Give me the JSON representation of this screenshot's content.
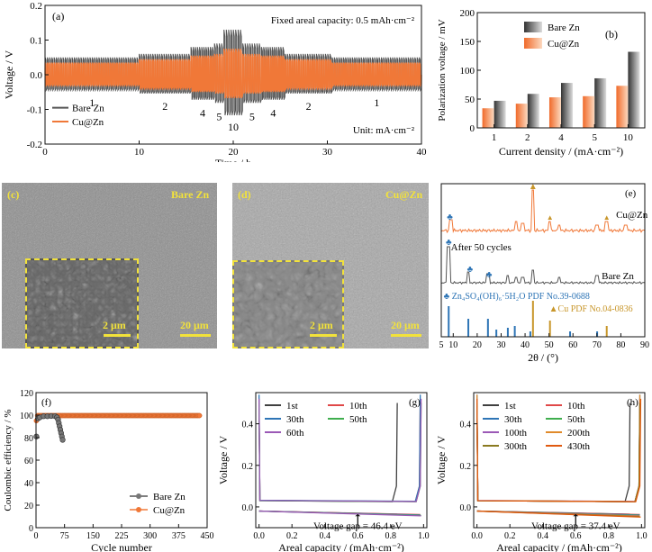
{
  "panels": {
    "a": {
      "label": "(a)",
      "annotation": "Fixed areal capacity: 0.5 mAh·cm⁻²",
      "unit_note": "Unit: mA·cm⁻²",
      "rate_labels": [
        "1",
        "2",
        "4",
        "5",
        "10",
        "5",
        "4",
        "2",
        "1"
      ],
      "legend": [
        "Bare Zn",
        "Cu@Zn"
      ]
    },
    "b": {
      "label": "(b)",
      "legend": [
        "Bare Zn",
        "Cu@Zn"
      ]
    },
    "c": {
      "label": "(c)",
      "title": "Bare Zn",
      "inset_scale": "2 μm",
      "scale": "20 μm"
    },
    "d": {
      "label": "(d)",
      "title": "Cu@Zn",
      "inset_scale": "2 μm",
      "scale": "20 μm"
    },
    "e": {
      "label": "(e)",
      "labels": [
        "Cu@Zn",
        "After 50 cycles",
        "Bare Zn",
        "Zn₄SO₄(OH)₆·5H₂O PDF No.39-0688",
        "Cu PDF No.04-0836"
      ]
    },
    "f": {
      "label": "(f)",
      "legend": [
        "Bare Zn",
        "Cu@Zn"
      ]
    },
    "g": {
      "label": "(g)",
      "gap_label": "Voltage gap = 46.4 eV"
    },
    "h": {
      "label": "(h)",
      "gap_label": "Voltage gap = 37.4 eV"
    }
  },
  "colors": {
    "bare": "#555555",
    "cu": "#f07838",
    "yellow": "#f2e23a",
    "blue": "#2e75b6",
    "gold": "#c8962a"
  },
  "chart_data": [
    {
      "id": "a",
      "type": "line",
      "title": "",
      "xlabel": "Time / h",
      "ylabel": "Voltage / V",
      "xlim": [
        0,
        40
      ],
      "ylim": [
        -0.2,
        0.2
      ],
      "xticks": [
        "0",
        "10",
        "20",
        "30",
        "40"
      ],
      "yticks": [
        "-0.2",
        "-0.1",
        "0.0",
        "0.1",
        "0.2"
      ],
      "segments": [
        {
          "rate": "1",
          "t": [
            0,
            10
          ],
          "bare_amp": 0.05,
          "cu_amp": 0.035
        },
        {
          "rate": "2",
          "t": [
            10,
            15.5
          ],
          "bare_amp": 0.06,
          "cu_amp": 0.045
        },
        {
          "rate": "4",
          "t": [
            15.5,
            18
          ],
          "bare_amp": 0.08,
          "cu_amp": 0.055
        },
        {
          "rate": "5",
          "t": [
            18,
            19
          ],
          "bare_amp": 0.09,
          "cu_amp": 0.06
        },
        {
          "rate": "10",
          "t": [
            19,
            21
          ],
          "bare_amp": 0.13,
          "cu_amp": 0.075
        },
        {
          "rate": "5",
          "t": [
            21,
            23
          ],
          "bare_amp": 0.09,
          "cu_amp": 0.06
        },
        {
          "rate": "4",
          "t": [
            23,
            25.5
          ],
          "bare_amp": 0.08,
          "cu_amp": 0.055
        },
        {
          "rate": "2",
          "t": [
            25.5,
            30.5
          ],
          "bare_amp": 0.06,
          "cu_amp": 0.045
        },
        {
          "rate": "1",
          "t": [
            30.5,
            40
          ],
          "bare_amp": 0.05,
          "cu_amp": 0.035
        }
      ]
    },
    {
      "id": "b",
      "type": "bar",
      "title": "",
      "categories": [
        "1",
        "2",
        "4",
        "5",
        "10"
      ],
      "series": [
        {
          "name": "Bare Zn",
          "values": [
            47,
            59,
            78,
            86,
            132
          ]
        },
        {
          "name": "Cu@Zn",
          "values": [
            34,
            42,
            53,
            55,
            73
          ]
        }
      ],
      "xlabel": "Current density / (mA·cm⁻²)",
      "ylabel": "Polarization voltage / mV",
      "ylim": [
        0,
        200
      ],
      "yticks": [
        "0",
        "50",
        "100",
        "150",
        "200"
      ]
    },
    {
      "id": "e",
      "type": "line",
      "title": "",
      "xlabel": "2θ / (°)",
      "xlim": [
        5,
        90
      ],
      "xticks": [
        "5",
        "10",
        "20",
        "30",
        "40",
        "50",
        "60",
        "70",
        "80",
        "90"
      ],
      "cu_peaks": [
        43.3,
        50.4,
        74.1
      ],
      "zhs_peaks": [
        8.1,
        16.3,
        24.5,
        28.0,
        32.8,
        35.7,
        42.2,
        58.8,
        70.1
      ],
      "zn_peaks": [
        36.3,
        39.0,
        43.2,
        54.3,
        70.1,
        70.6,
        82.1,
        86.5
      ]
    },
    {
      "id": "f",
      "type": "scatter",
      "title": "",
      "xlabel": "Cycle number",
      "ylabel": "Coulombic efficiency / %",
      "xlim": [
        0,
        450
      ],
      "ylim": [
        0,
        120
      ],
      "xticks": [
        "0",
        "75",
        "150",
        "225",
        "300",
        "375",
        "450"
      ],
      "yticks": [
        "0",
        "20",
        "40",
        "60",
        "80",
        "100",
        "120"
      ],
      "series": [
        {
          "name": "Bare Zn",
          "cycles": [
            1,
            5,
            10,
            20,
            30,
            40,
            50,
            55,
            58,
            60,
            62,
            64,
            66,
            68,
            70
          ],
          "ce": [
            81,
            97,
            98,
            99,
            99,
            99.2,
            99.1,
            98,
            96,
            93,
            90,
            87,
            84,
            81,
            78
          ]
        },
        {
          "name": "Cu@Zn",
          "cycles_from": 1,
          "cycles_to": 430,
          "ce_start": 95,
          "ce_steady": 99.6
        }
      ]
    },
    {
      "id": "g",
      "type": "line",
      "title": "",
      "xlabel": "Areal capacity / (mAh·cm⁻²)",
      "ylabel": "Voltage / V",
      "xlim": [
        -0.02,
        1.02
      ],
      "ylim": [
        -0.1,
        0.55
      ],
      "xticks": [
        "0.0",
        "0.2",
        "0.4",
        "0.6",
        "0.8",
        "1.0"
      ],
      "yticks": [
        "0.0",
        "0.2",
        "0.4"
      ],
      "series": [
        {
          "name": "1st",
          "color": "#404040",
          "end_x": 0.84,
          "plateau": 0.02
        },
        {
          "name": "10th",
          "color": "#e04848",
          "end_x": 0.98,
          "plateau": 0.021
        },
        {
          "name": "30th",
          "color": "#2e75b6",
          "end_x": 0.98,
          "plateau": 0.022
        },
        {
          "name": "50th",
          "color": "#3fae4e",
          "end_x": 0.985,
          "plateau": 0.02
        },
        {
          "name": "60th",
          "color": "#9b59b6",
          "end_x": 0.985,
          "plateau": 0.021
        }
      ]
    },
    {
      "id": "h",
      "type": "line",
      "title": "",
      "xlabel": "Areal capacity / (mAh·cm⁻²)",
      "ylabel": "Voltage / V",
      "xlim": [
        -0.02,
        1.02
      ],
      "ylim": [
        -0.1,
        0.55
      ],
      "xticks": [
        "0.0",
        "0.2",
        "0.4",
        "0.6",
        "0.8",
        "1.0"
      ],
      "yticks": [
        "0.0",
        "0.2",
        "0.4"
      ],
      "series": [
        {
          "name": "1st",
          "color": "#404040",
          "end_x": 0.93,
          "plateau": 0.02
        },
        {
          "name": "10th",
          "color": "#e04848",
          "end_x": 0.99,
          "plateau": 0.02
        },
        {
          "name": "30th",
          "color": "#2e75b6",
          "end_x": 0.99,
          "plateau": 0.02
        },
        {
          "name": "50th",
          "color": "#3fae4e",
          "end_x": 0.99,
          "plateau": 0.02
        },
        {
          "name": "100th",
          "color": "#9b59b6",
          "end_x": 0.99,
          "plateau": 0.021
        },
        {
          "name": "200th",
          "color": "#e08a2a",
          "end_x": 0.99,
          "plateau": 0.02
        },
        {
          "name": "300th",
          "color": "#8a7a20",
          "end_x": 0.99,
          "plateau": 0.02
        },
        {
          "name": "430th",
          "color": "#e05a10",
          "end_x": 0.995,
          "plateau": 0.02
        }
      ]
    }
  ]
}
